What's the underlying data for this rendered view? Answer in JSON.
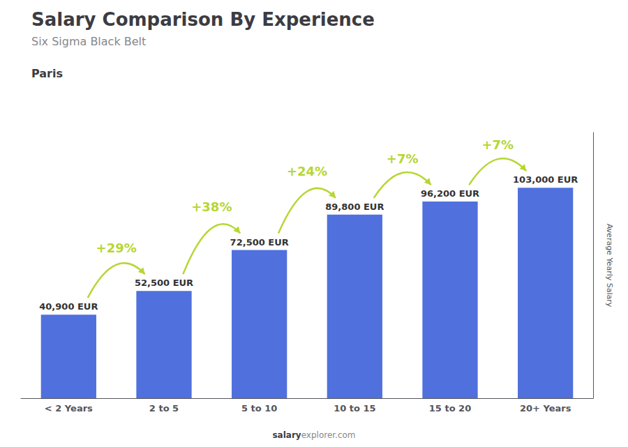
{
  "chart_data": {
    "type": "bar",
    "title": "Salary Comparison By Experience",
    "subtitle": "Six Sigma Black Belt",
    "annotations": [
      "Paris"
    ],
    "watermark": [
      "salary",
      "explorer.com"
    ],
    "ylabel": "Average Yearly Salary",
    "categories": [
      "< 2 Years",
      "2 to 5",
      "5 to 10",
      "10 to 15",
      "15 to 20",
      "20+ Years"
    ],
    "values": [
      40900,
      52500,
      72500,
      89800,
      96200,
      103000
    ],
    "value_labels": [
      "40,900 EUR",
      "52,500 EUR",
      "72,500 EUR",
      "89,800 EUR",
      "96,200 EUR",
      "103,000 EUR"
    ],
    "data_labels": true,
    "change_labels": [
      "+29%",
      "+38%",
      "+24%",
      "+7%",
      "+7%"
    ],
    "ylim": [
      0,
      130000
    ],
    "grid": false,
    "tick_labels": "x"
  }
}
